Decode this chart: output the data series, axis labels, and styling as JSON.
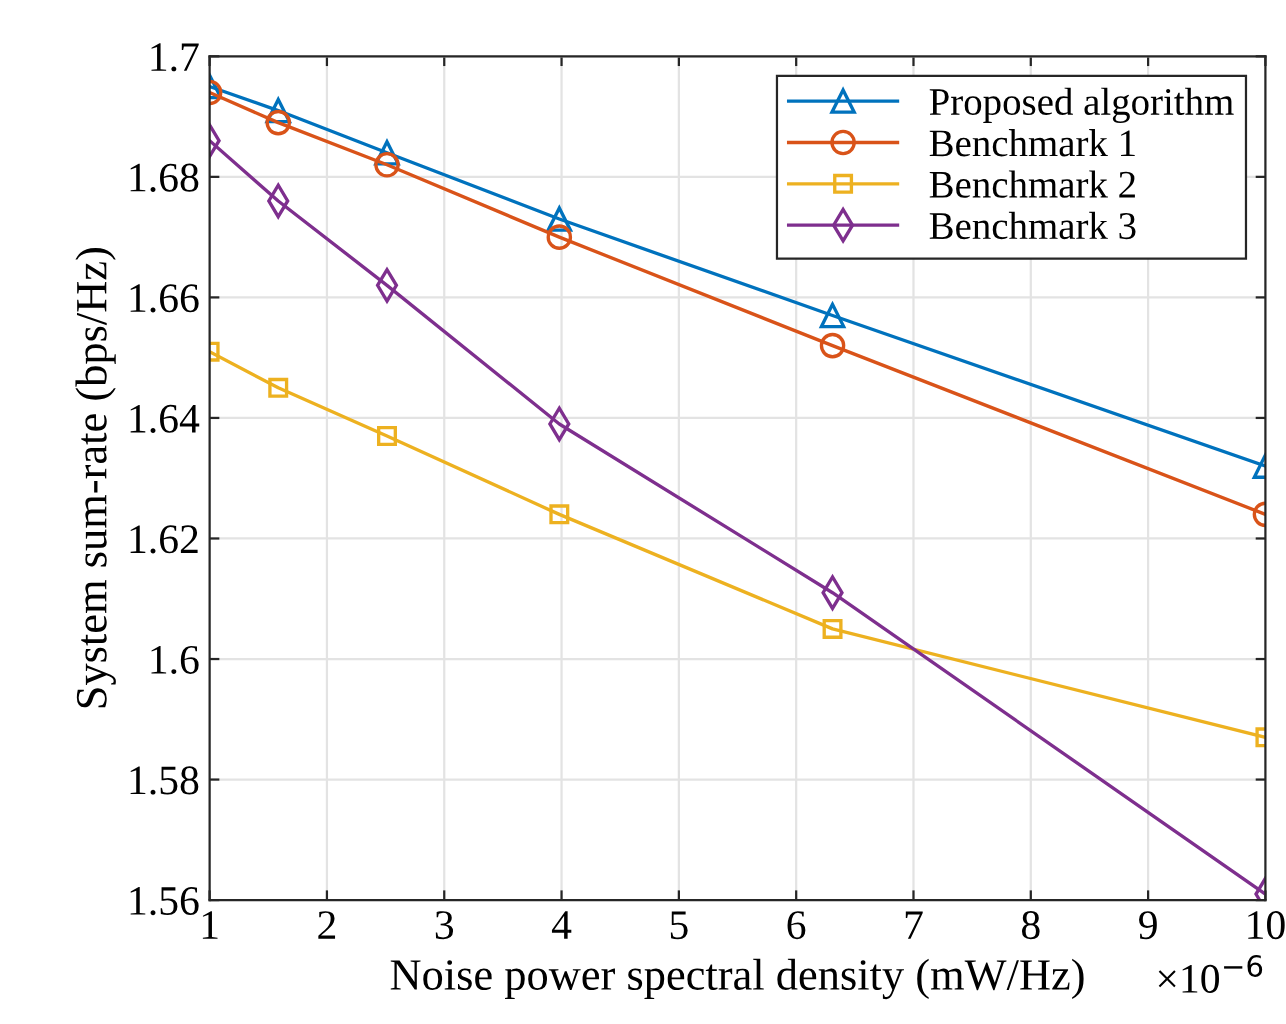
{
  "chart_data": {
    "type": "line",
    "xlabel": "Noise power spectral density (mW/Hz)",
    "ylabel": "System sum-rate (bps/Hz)",
    "annotations": [
      "×10$^{−6}$"
    ],
    "x": [
      1,
      1.585,
      2.512,
      3.981,
      6.31,
      10
    ],
    "series": [
      {
        "name": "Proposed algorithm",
        "color": "#0072bd",
        "marker": "triangle",
        "values": [
          1.695,
          1.691,
          1.684,
          1.673,
          1.657,
          1.632
        ]
      },
      {
        "name": "Benchmark 1",
        "color": "#d95319",
        "marker": "circle",
        "values": [
          1.694,
          1.689,
          1.682,
          1.67,
          1.652,
          1.624
        ]
      },
      {
        "name": "Benchmark 2",
        "color": "#edb120",
        "marker": "square",
        "values": [
          1.651,
          1.645,
          1.637,
          1.624,
          1.605,
          1.587
        ]
      },
      {
        "name": "Benchmark 3",
        "color": "#7e2f8e",
        "marker": "diamond",
        "values": [
          1.686,
          1.676,
          1.662,
          1.639,
          1.611,
          1.561
        ]
      }
    ],
    "xlim": [
      1,
      10
    ],
    "xticks": [
      1,
      2,
      3,
      4,
      5,
      6,
      7,
      8,
      9,
      10
    ],
    "ylim": [
      1.56,
      1.7
    ],
    "yticks": [
      1.56,
      1.58,
      1.6,
      1.62,
      1.64,
      1.66,
      1.68,
      1.7
    ],
    "grid": true,
    "legend": "top right",
    "line_style": "solid"
  }
}
